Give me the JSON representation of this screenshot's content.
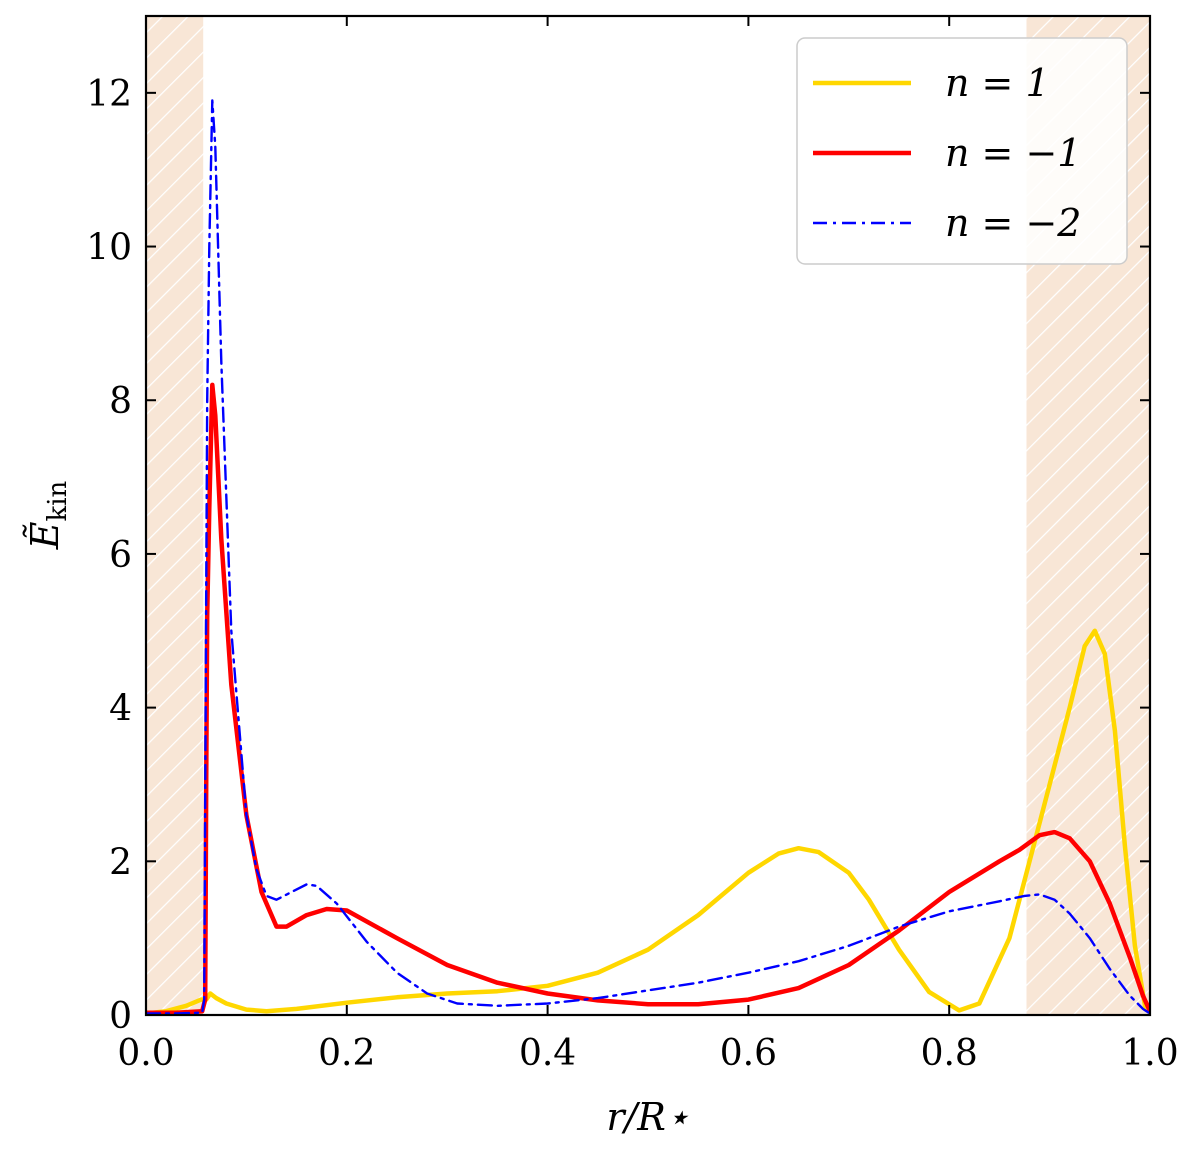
{
  "chart_data": {
    "type": "line",
    "xlabel": "r/R⋆",
    "ylabel_main": "Ẽ",
    "ylabel_sub": "kin",
    "xlim": [
      0.0,
      1.0
    ],
    "ylim": [
      0,
      13
    ],
    "x_ticks": [
      0.0,
      0.2,
      0.4,
      0.6,
      0.8,
      1.0
    ],
    "x_tick_labels": [
      "0.0",
      "0.2",
      "0.4",
      "0.6",
      "0.8",
      "1.0"
    ],
    "y_ticks": [
      0,
      2,
      4,
      6,
      8,
      10,
      12
    ],
    "y_tick_labels": [
      "0",
      "2",
      "4",
      "6",
      "8",
      "10",
      "12"
    ],
    "grid": false,
    "legend_position": "top-right",
    "shaded_regions": [
      {
        "x0": 0.0,
        "x1": 0.057,
        "color": "#f8e6d6"
      },
      {
        "x0": 0.877,
        "x1": 1.0,
        "color": "#f8e6d6"
      }
    ],
    "series": [
      {
        "name": "n = 1",
        "color": "#ffd700",
        "style": "solid",
        "points": [
          [
            0.0,
            0.02
          ],
          [
            0.02,
            0.05
          ],
          [
            0.04,
            0.12
          ],
          [
            0.055,
            0.2
          ],
          [
            0.06,
            0.2
          ],
          [
            0.064,
            0.28
          ],
          [
            0.07,
            0.22
          ],
          [
            0.08,
            0.15
          ],
          [
            0.1,
            0.07
          ],
          [
            0.12,
            0.05
          ],
          [
            0.15,
            0.08
          ],
          [
            0.2,
            0.16
          ],
          [
            0.25,
            0.23
          ],
          [
            0.3,
            0.28
          ],
          [
            0.35,
            0.31
          ],
          [
            0.4,
            0.38
          ],
          [
            0.45,
            0.55
          ],
          [
            0.5,
            0.85
          ],
          [
            0.55,
            1.3
          ],
          [
            0.6,
            1.85
          ],
          [
            0.63,
            2.1
          ],
          [
            0.65,
            2.17
          ],
          [
            0.67,
            2.12
          ],
          [
            0.7,
            1.85
          ],
          [
            0.72,
            1.5
          ],
          [
            0.75,
            0.85
          ],
          [
            0.78,
            0.3
          ],
          [
            0.81,
            0.06
          ],
          [
            0.83,
            0.15
          ],
          [
            0.86,
            1.0
          ],
          [
            0.89,
            2.5
          ],
          [
            0.92,
            4.0
          ],
          [
            0.935,
            4.8
          ],
          [
            0.945,
            5.0
          ],
          [
            0.955,
            4.7
          ],
          [
            0.965,
            3.7
          ],
          [
            0.975,
            2.2
          ],
          [
            0.985,
            0.9
          ],
          [
            0.995,
            0.12
          ],
          [
            1.0,
            0.05
          ]
        ]
      },
      {
        "name": "n = −1",
        "color": "#ff0000",
        "style": "solid",
        "points": [
          [
            0.0,
            0.03
          ],
          [
            0.03,
            0.03
          ],
          [
            0.056,
            0.05
          ],
          [
            0.059,
            0.2
          ],
          [
            0.06,
            3.0
          ],
          [
            0.061,
            5.2
          ],
          [
            0.063,
            6.6
          ],
          [
            0.066,
            8.2
          ],
          [
            0.069,
            7.8
          ],
          [
            0.075,
            6.2
          ],
          [
            0.085,
            4.3
          ],
          [
            0.1,
            2.6
          ],
          [
            0.115,
            1.6
          ],
          [
            0.13,
            1.15
          ],
          [
            0.14,
            1.15
          ],
          [
            0.16,
            1.3
          ],
          [
            0.18,
            1.38
          ],
          [
            0.2,
            1.36
          ],
          [
            0.25,
            1.0
          ],
          [
            0.3,
            0.65
          ],
          [
            0.35,
            0.42
          ],
          [
            0.4,
            0.28
          ],
          [
            0.45,
            0.19
          ],
          [
            0.5,
            0.14
          ],
          [
            0.55,
            0.14
          ],
          [
            0.6,
            0.2
          ],
          [
            0.65,
            0.35
          ],
          [
            0.7,
            0.65
          ],
          [
            0.75,
            1.1
          ],
          [
            0.8,
            1.6
          ],
          [
            0.85,
            2.0
          ],
          [
            0.87,
            2.15
          ],
          [
            0.89,
            2.34
          ],
          [
            0.905,
            2.38
          ],
          [
            0.92,
            2.3
          ],
          [
            0.94,
            2.0
          ],
          [
            0.96,
            1.45
          ],
          [
            0.98,
            0.75
          ],
          [
            0.993,
            0.25
          ],
          [
            1.0,
            0.05
          ]
        ]
      },
      {
        "name": "n = −2",
        "color": "#0000ff",
        "style": "dashdot",
        "points": [
          [
            0.0,
            0.02
          ],
          [
            0.03,
            0.02
          ],
          [
            0.056,
            0.03
          ],
          [
            0.058,
            0.2
          ],
          [
            0.06,
            5.5
          ],
          [
            0.061,
            8.0
          ],
          [
            0.063,
            10.0
          ],
          [
            0.066,
            11.9
          ],
          [
            0.069,
            11.3
          ],
          [
            0.075,
            8.5
          ],
          [
            0.085,
            5.0
          ],
          [
            0.1,
            2.6
          ],
          [
            0.11,
            1.9
          ],
          [
            0.12,
            1.55
          ],
          [
            0.13,
            1.5
          ],
          [
            0.145,
            1.6
          ],
          [
            0.16,
            1.7
          ],
          [
            0.17,
            1.68
          ],
          [
            0.19,
            1.45
          ],
          [
            0.22,
            0.95
          ],
          [
            0.25,
            0.55
          ],
          [
            0.28,
            0.28
          ],
          [
            0.31,
            0.15
          ],
          [
            0.35,
            0.12
          ],
          [
            0.4,
            0.15
          ],
          [
            0.45,
            0.22
          ],
          [
            0.5,
            0.32
          ],
          [
            0.55,
            0.42
          ],
          [
            0.6,
            0.55
          ],
          [
            0.65,
            0.7
          ],
          [
            0.7,
            0.9
          ],
          [
            0.75,
            1.15
          ],
          [
            0.8,
            1.35
          ],
          [
            0.85,
            1.48
          ],
          [
            0.875,
            1.55
          ],
          [
            0.89,
            1.57
          ],
          [
            0.905,
            1.5
          ],
          [
            0.92,
            1.32
          ],
          [
            0.94,
            1.0
          ],
          [
            0.96,
            0.6
          ],
          [
            0.98,
            0.25
          ],
          [
            0.993,
            0.08
          ],
          [
            1.0,
            0.02
          ]
        ]
      }
    ]
  }
}
